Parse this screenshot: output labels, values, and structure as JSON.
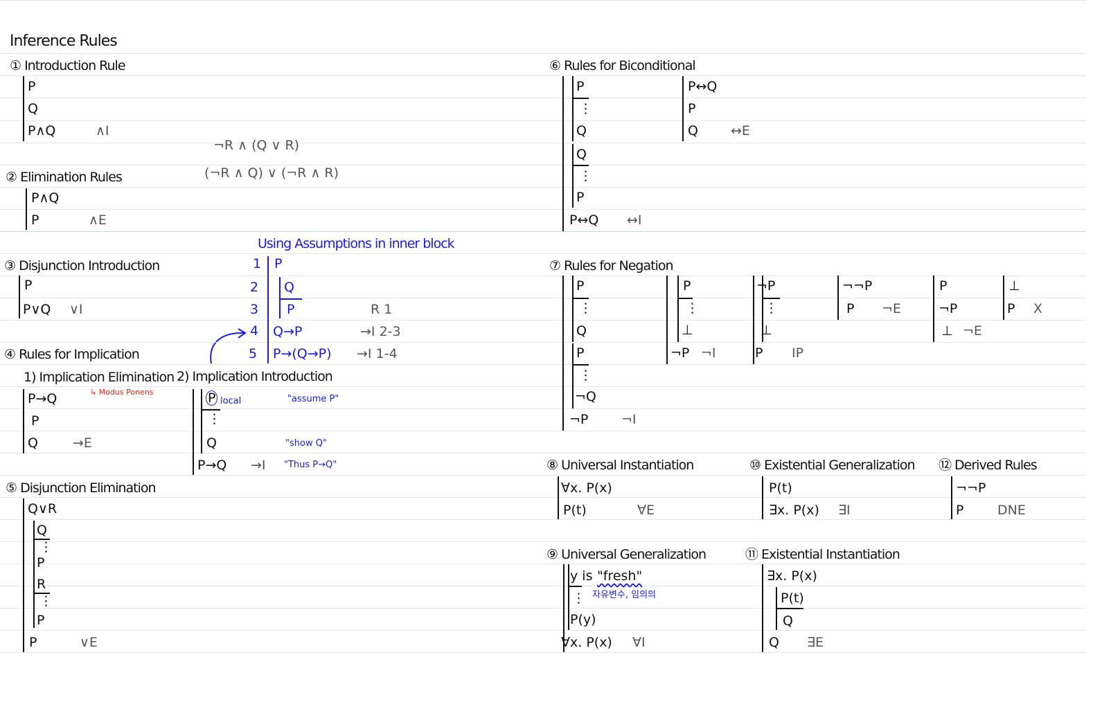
{
  "title": "Inference Rules",
  "s1": {
    "heading": "① Introduction Rule",
    "lines": [
      "P",
      "Q",
      "P∧Q"
    ],
    "rule": "∧I"
  },
  "scratch": [
    "¬R ∧ (Q ∨ R)",
    "(¬R ∧ Q) ∨ (¬R ∧ R)"
  ],
  "s2": {
    "heading": "② Elimination Rules",
    "lines": [
      "P∧Q",
      "P"
    ],
    "rule": "∧E"
  },
  "s3": {
    "heading": "③ Disjunction Introduction",
    "lines": [
      "P",
      "P∨Q"
    ],
    "rule": "∨I"
  },
  "example": {
    "title": "Using Assumptions in inner block",
    "numbers": [
      "1",
      "2",
      "3",
      "4",
      "5"
    ],
    "lines": [
      "P",
      "Q",
      "P",
      "Q→P",
      "P→(Q→P)"
    ],
    "justifications": [
      "R 1",
      "→I 2-3",
      "→I 1-4"
    ]
  },
  "s4": {
    "heading": "④ Rules for Implication",
    "elim": {
      "heading": "1) Implication Elimination",
      "lines": [
        "P→Q",
        "P",
        "Q"
      ],
      "rule": "→E",
      "note": "↳ Modus Ponens"
    },
    "intro": {
      "heading": "2) Implication Introduction",
      "lines": [
        "P",
        "⋮",
        "Q",
        "P→Q"
      ],
      "local": "local",
      "rule": "→I",
      "comments": [
        "\"assume P\"",
        "\"show Q\"",
        "\"Thus P→Q\""
      ]
    }
  },
  "s5": {
    "heading": "⑤ Disjunction Elimination",
    "lines": [
      "Q∨R",
      "Q",
      "⋮",
      "P",
      "R",
      "⋮",
      "P",
      "P"
    ],
    "rule": "∨E"
  },
  "s6": {
    "heading": "⑥ Rules for Biconditional",
    "intro": {
      "lines": [
        "P",
        "⋮",
        "Q",
        "Q",
        "⋮",
        "P",
        "P↔Q"
      ],
      "rule": "↔I"
    },
    "elim": {
      "lines": [
        "P↔Q",
        "P",
        "Q"
      ],
      "rule": "↔E"
    }
  },
  "s7": {
    "heading": "⑦ Rules for Negation",
    "b1": {
      "lines": [
        "P",
        "⋮",
        "Q",
        "P",
        "⋮",
        "¬Q",
        "¬P"
      ],
      "rule": "¬I"
    },
    "b2": {
      "lines": [
        "P",
        "⋮",
        "⊥",
        "¬P"
      ],
      "rule": "¬I"
    },
    "b3": {
      "lines": [
        "¬P",
        "⋮",
        "⊥",
        "P"
      ],
      "rule": "IP"
    },
    "b4": {
      "lines": [
        "¬¬P",
        "P"
      ],
      "rule": "¬E"
    },
    "b5": {
      "lines": [
        "P",
        "¬P",
        "⊥"
      ],
      "rule": "¬E"
    },
    "b6": {
      "lines": [
        "⊥",
        "P"
      ],
      "rule": "X"
    }
  },
  "s8": {
    "heading": "⑧ Universal Instantiation",
    "lines": [
      "∀x. P(x)",
      "P(t)"
    ],
    "rule": "∀E"
  },
  "s9": {
    "heading": "⑨ Universal Generalization",
    "fresh_prefix": "y is",
    "fresh": "\"fresh\"",
    "note": "자유변수, 임의의",
    "lines": [
      "⋮",
      "P(y)",
      "∀x. P(x)"
    ],
    "rule": "∀I"
  },
  "s10": {
    "heading": "⑩ Existential Generalization",
    "lines": [
      "P(t)",
      "∃x. P(x)"
    ],
    "rule": "∃I"
  },
  "s11": {
    "heading": "⑪ Existential Instantiation",
    "lines": [
      "∃x. P(x)",
      "P(t)",
      "Q",
      "Q"
    ],
    "rule": "∃E"
  },
  "s12": {
    "heading": "⑫ Derived Rules",
    "lines": [
      "¬¬P",
      "P"
    ],
    "rule": "DNE"
  },
  "colors": {
    "ink": "#111111",
    "rule_text": "#555555",
    "annotation_blue": "#1a1ae6",
    "annotation_red": "#e0201a",
    "ruled_line": "#e4e4e4"
  }
}
